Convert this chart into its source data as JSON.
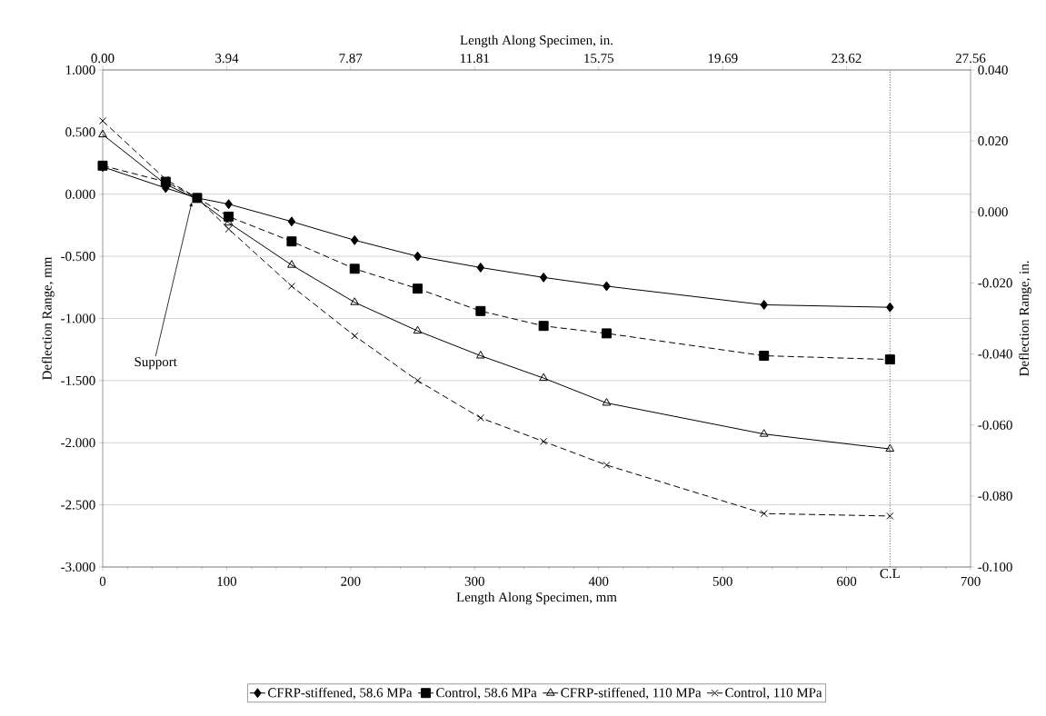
{
  "chart_data": {
    "type": "line",
    "xlabel": "Length Along Specimen, mm",
    "x2label": "Length Along Specimen, in.",
    "ylabel": "Deflection Range, mm",
    "y2label": "Deflection Range, in.",
    "x": [
      0,
      50.8,
      76.2,
      101.6,
      152.4,
      203.2,
      254,
      304.8,
      355.6,
      406.4,
      533.4,
      635
    ],
    "series": [
      {
        "name": "CFRP-stiffened, 58.6 MPa",
        "color": "#000000",
        "marker": "diamond",
        "line_style": "solid",
        "values": [
          0.22,
          0.05,
          -0.03,
          -0.08,
          -0.22,
          -0.37,
          -0.5,
          -0.59,
          -0.67,
          -0.74,
          -0.89,
          -0.91
        ]
      },
      {
        "name": "Control, 58.6 MPa",
        "color": "#000000",
        "marker": "square",
        "line_style": "dashed",
        "values": [
          0.23,
          0.1,
          -0.03,
          -0.18,
          -0.38,
          -0.6,
          -0.76,
          -0.94,
          -1.06,
          -1.12,
          -1.3,
          -1.33
        ]
      },
      {
        "name": "CFRP-stiffened, 110 MPa",
        "color": "#000000",
        "marker": "triangle",
        "line_style": "solid",
        "values": [
          0.48,
          0.08,
          -0.04,
          -0.23,
          -0.57,
          -0.87,
          -1.1,
          -1.3,
          -1.48,
          -1.68,
          -1.93,
          -2.05
        ]
      },
      {
        "name": "Control, 110 MPa",
        "color": "#000000",
        "marker": "cross",
        "line_style": "dashed",
        "values": [
          0.59,
          0.12,
          -0.03,
          -0.28,
          -0.74,
          -1.14,
          -1.5,
          -1.8,
          -1.99,
          -2.18,
          -2.57,
          -2.59
        ]
      }
    ],
    "xlim": [
      0,
      700
    ],
    "xticks": [
      0,
      100,
      200,
      300,
      400,
      500,
      600,
      700
    ],
    "x2lim": [
      0,
      27.56
    ],
    "x2ticks": [
      {
        "value": 0,
        "label": "0.00"
      },
      3.94,
      7.87,
      11.81,
      15.75,
      19.69,
      23.62,
      27.56
    ],
    "ylim": [
      -3,
      1
    ],
    "yticks": [
      {
        "value": -3,
        "label": "-3.000"
      },
      {
        "value": -2.5,
        "label": "-2.500"
      },
      {
        "value": -2,
        "label": "-2.000"
      },
      {
        "value": -1.5,
        "label": "-1.500"
      },
      {
        "value": -1,
        "label": "-1.000"
      },
      {
        "value": -0.5,
        "label": "-0.500"
      },
      {
        "value": 0,
        "label": "0.000"
      },
      {
        "value": 0.5,
        "label": "0.500"
      },
      {
        "value": 1,
        "label": "1.000"
      }
    ],
    "y2lim": [
      -0.1,
      0.04
    ],
    "y2ticks": [
      {
        "value": -0.1,
        "label": "-0.100"
      },
      {
        "value": -0.08,
        "label": "-0.080"
      },
      {
        "value": -0.06,
        "label": "-0.060"
      },
      {
        "value": -0.04,
        "label": "-0.040"
      },
      {
        "value": -0.02,
        "label": "-0.020"
      },
      {
        "value": 0,
        "label": "0.000"
      },
      {
        "value": 0.02,
        "label": "0.020"
      },
      {
        "value": 0.04,
        "label": "0.040"
      }
    ],
    "grid": "y",
    "legend": "bottom",
    "ref_lines": [
      {
        "axis": "x",
        "value": 635,
        "label": "C.L",
        "line_style": "dotted"
      }
    ],
    "annotations": [
      {
        "text": "Support",
        "x": 72,
        "y": -0.06
      }
    ]
  }
}
